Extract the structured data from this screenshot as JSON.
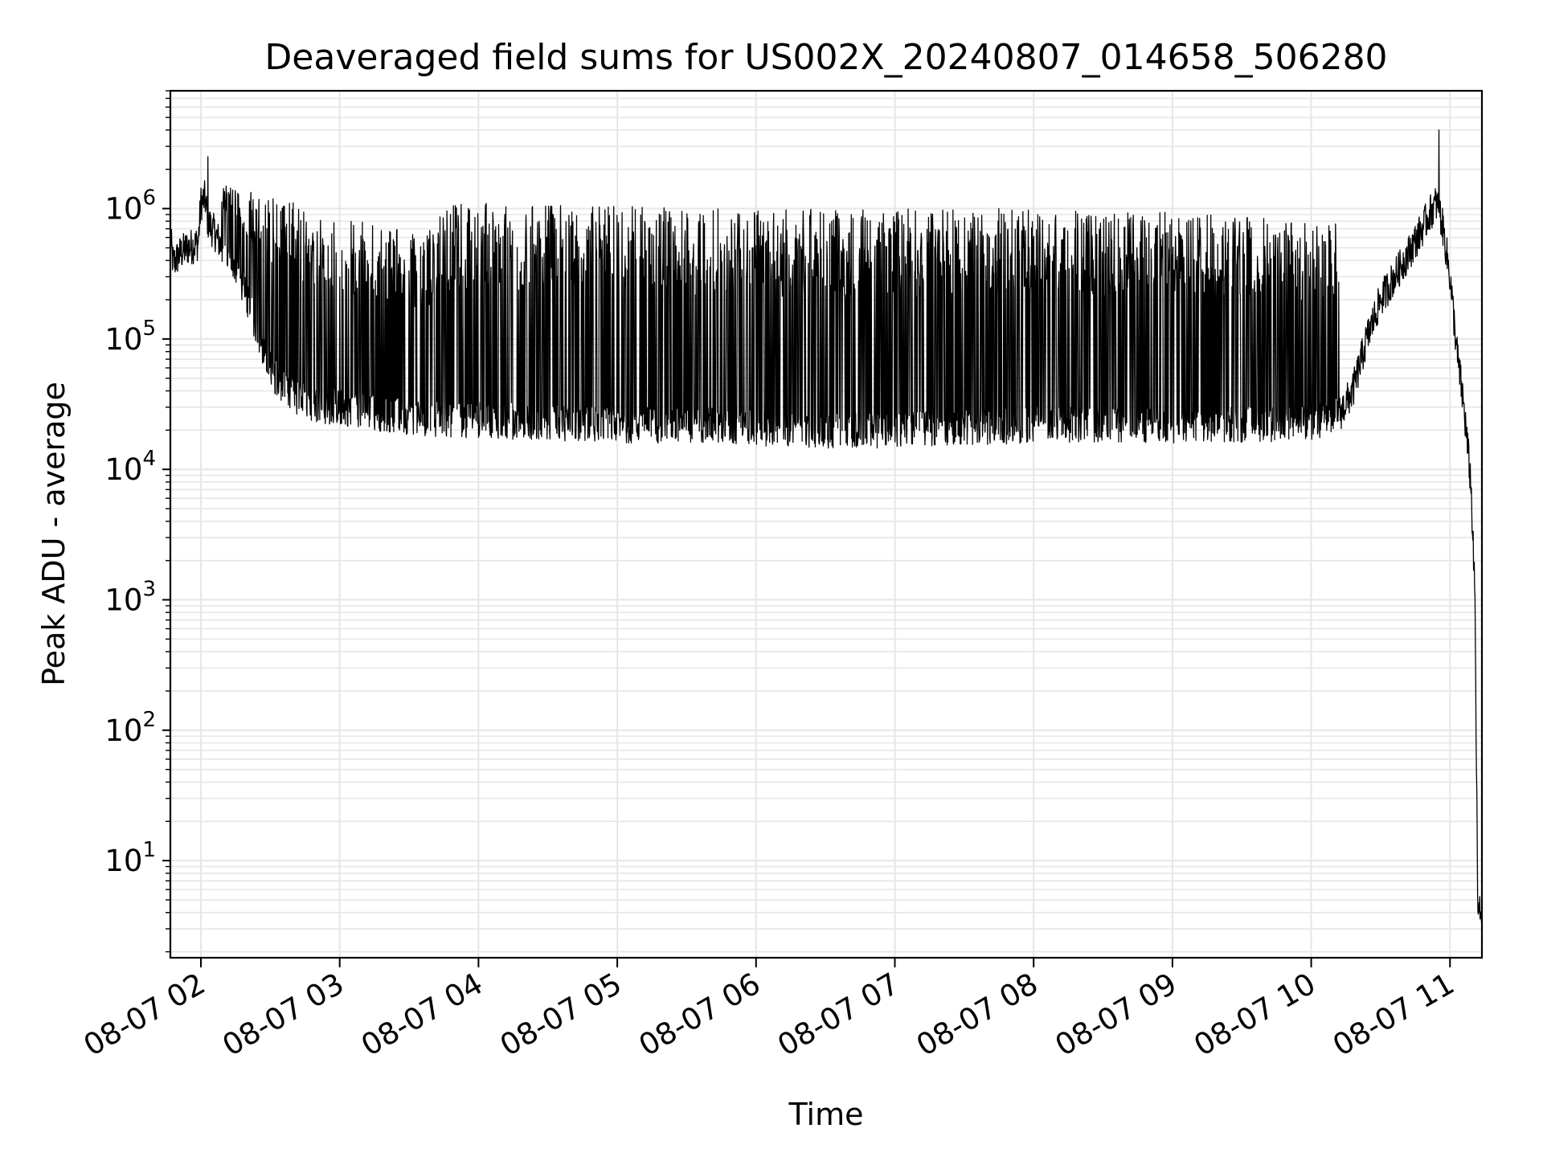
{
  "chart_data": {
    "type": "line",
    "title": "Deaveraged field sums for US002X_20240807_014658_506280",
    "xlabel": "Time",
    "ylabel": "Peak ADU - average",
    "yscale": "log",
    "ylim": [
      1.8,
      8000000
    ],
    "xlim_hours": [
      1.78,
      11.23
    ],
    "grid": true,
    "legend": "none",
    "colors": {
      "line": "#000000",
      "grid": "#e6e6e6",
      "frame": "#000000"
    },
    "x_ticks": [
      {
        "hour": 2,
        "label": "08-07 02"
      },
      {
        "hour": 3,
        "label": "08-07 03"
      },
      {
        "hour": 4,
        "label": "08-07 04"
      },
      {
        "hour": 5,
        "label": "08-07 05"
      },
      {
        "hour": 6,
        "label": "08-07 06"
      },
      {
        "hour": 7,
        "label": "08-07 07"
      },
      {
        "hour": 8,
        "label": "08-07 08"
      },
      {
        "hour": 9,
        "label": "08-07 09"
      },
      {
        "hour": 10,
        "label": "08-07 10"
      },
      {
        "hour": 11,
        "label": "08-07 11"
      }
    ],
    "y_ticks": [
      {
        "value": 10,
        "base": "10",
        "exp": "1"
      },
      {
        "value": 100,
        "base": "10",
        "exp": "2"
      },
      {
        "value": 1000,
        "base": "10",
        "exp": "3"
      },
      {
        "value": 10000,
        "base": "10",
        "exp": "4"
      },
      {
        "value": 100000,
        "base": "10",
        "exp": "5"
      },
      {
        "value": 1000000,
        "base": "10",
        "exp": "6"
      }
    ],
    "series": [
      {
        "x_hours": [
          1.78,
          1.8,
          1.85,
          1.9,
          1.95,
          1.98,
          2.0,
          2.03,
          2.05,
          2.08,
          2.1,
          2.2,
          2.3,
          2.4,
          2.5,
          2.6,
          2.7,
          2.8,
          2.9,
          3.0,
          3.2,
          3.4,
          3.6,
          3.8,
          4.0,
          4.5,
          5.0,
          5.5,
          6.0,
          6.5,
          7.0,
          7.5,
          8.0,
          8.5,
          9.0,
          9.5,
          10.0,
          10.2,
          10.3,
          10.4,
          10.5,
          10.6,
          10.7,
          10.8,
          10.85,
          10.9,
          10.92,
          10.95,
          11.0,
          11.05,
          11.1,
          11.15,
          11.18,
          11.2,
          11.22
        ],
        "baseline": [
          600000,
          380000,
          450000,
          500000,
          520000,
          550000,
          1100000,
          1200000,
          800000,
          700000,
          650000,
          400000,
          250000,
          120000,
          60000,
          40000,
          35000,
          32000,
          30000,
          30000,
          28000,
          26000,
          25000,
          24000,
          24000,
          23000,
          22000,
          22000,
          21000,
          20000,
          20000,
          21000,
          22000,
          22000,
          22000,
          22000,
          23000,
          26000,
          40000,
          100000,
          200000,
          300000,
          450000,
          700000,
          900000,
          1100000,
          1000000,
          700000,
          300000,
          80000,
          30000,
          8000,
          1000,
          4,
          4
        ],
        "spike_peak": [
          null,
          null,
          null,
          null,
          null,
          null,
          null,
          null,
          null,
          null,
          null,
          1500000,
          1400000,
          1300000,
          1300000,
          1200000,
          1100000,
          1000000,
          900000,
          900000,
          800000,
          700000,
          600000,
          1100000,
          1100000,
          1100000,
          1100000,
          1000000,
          1000000,
          1000000,
          1000000,
          1000000,
          1000000,
          950000,
          950000,
          900000,
          800000,
          null,
          null,
          null,
          null,
          null,
          null,
          null,
          null,
          null,
          null,
          null,
          null,
          null,
          null,
          null,
          null,
          null,
          null
        ],
        "spikes": [
          {
            "x": 2.05,
            "y": 2500000
          },
          {
            "x": 10.92,
            "y": 4000000
          }
        ],
        "y_min_observed": 3.8,
        "y_max_observed": 4000000
      }
    ]
  }
}
